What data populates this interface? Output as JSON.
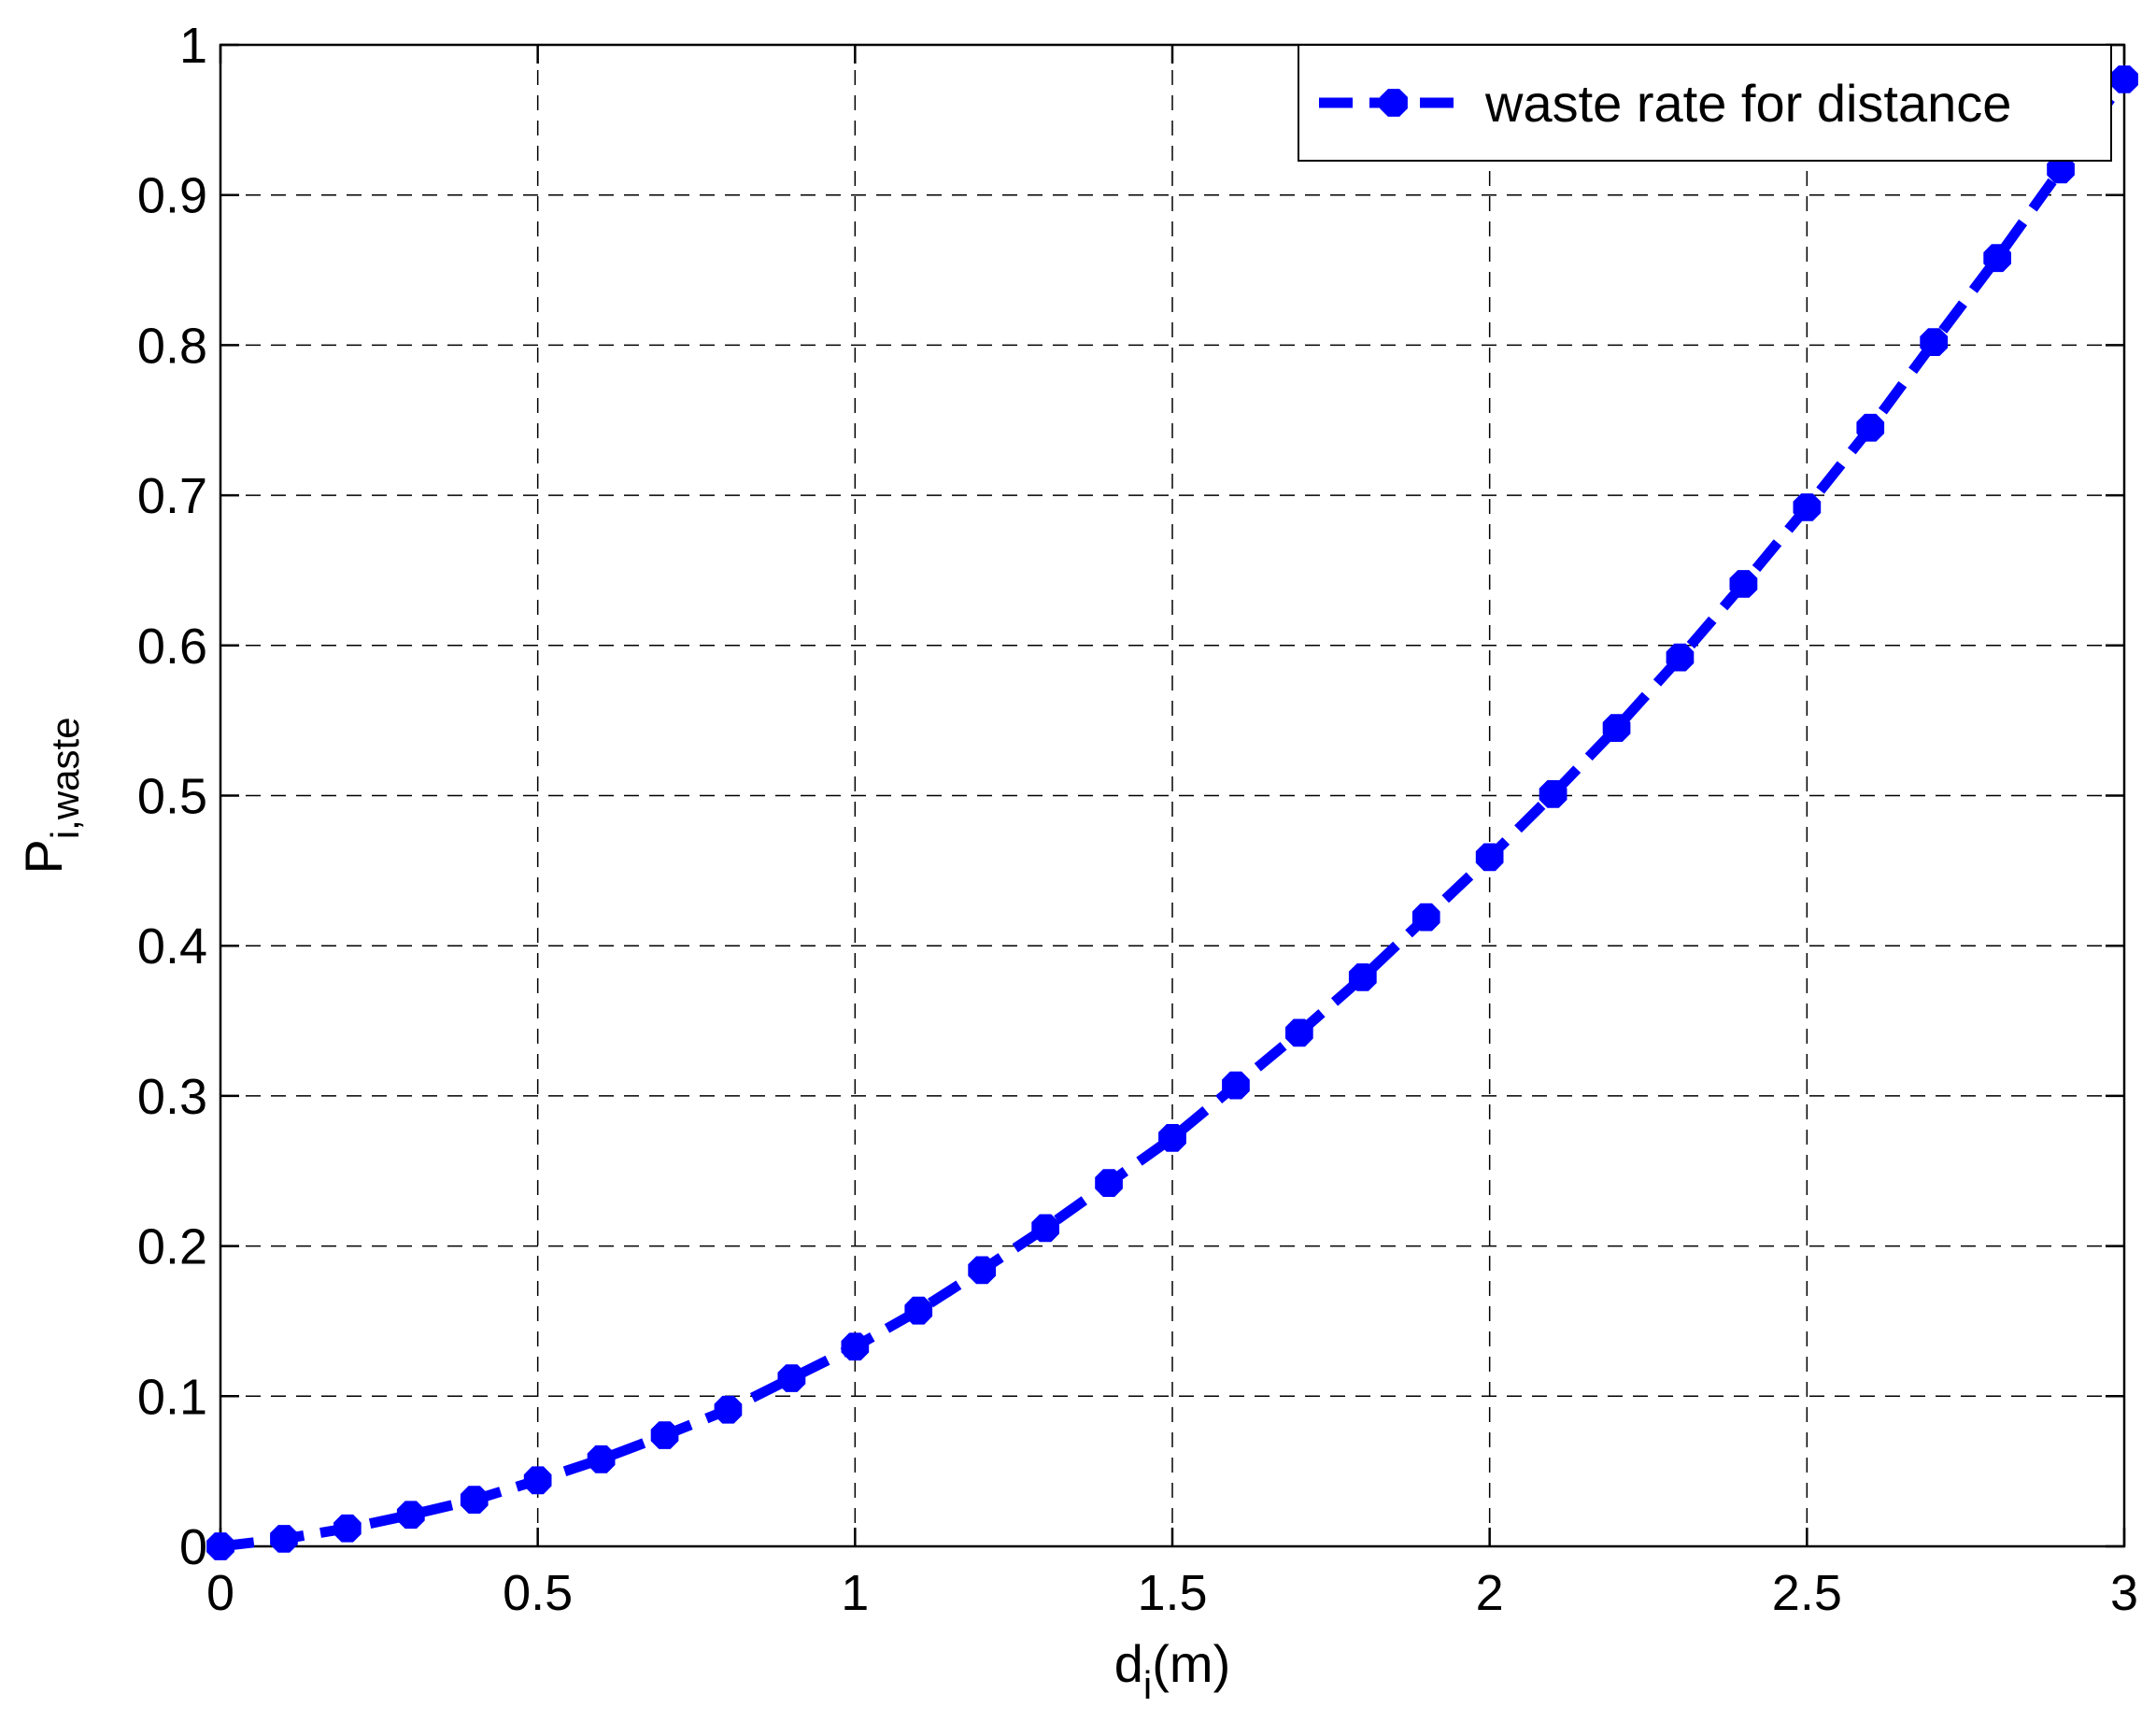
{
  "chart_data": {
    "type": "line",
    "xlabel": {
      "main": "d",
      "sub": "i",
      "suffix": "(m)"
    },
    "ylabel": {
      "main": "P",
      "sub": "i,waste"
    },
    "xlim": [
      0,
      3
    ],
    "ylim": [
      0,
      1
    ],
    "x_ticks": [
      "0",
      "0.5",
      "1",
      "1.5",
      "2",
      "2.5",
      "3"
    ],
    "y_ticks": [
      "0",
      "0.1",
      "0.2",
      "0.3",
      "0.4",
      "0.5",
      "0.6",
      "0.7",
      "0.8",
      "0.9",
      "1"
    ],
    "grid": true,
    "legend_position": "top-right",
    "series": [
      {
        "name": "waste rate for distance",
        "color": "#0000ff",
        "line_style": "dashed",
        "marker": "octagon",
        "x": [
          0,
          0.1,
          0.2,
          0.3,
          0.4,
          0.5,
          0.6,
          0.7,
          0.8,
          0.9,
          1.0,
          1.1,
          1.2,
          1.3,
          1.4,
          1.5,
          1.6,
          1.7,
          1.8,
          1.9,
          2.0,
          2.1,
          2.2,
          2.3,
          2.4,
          2.5,
          2.6,
          2.7,
          2.8,
          2.9,
          3.0
        ],
        "y": [
          0.0,
          0.005,
          0.012,
          0.021,
          0.031,
          0.044,
          0.058,
          0.074,
          0.091,
          0.112,
          0.133,
          0.157,
          0.184,
          0.212,
          0.242,
          0.272,
          0.307,
          0.342,
          0.379,
          0.419,
          0.459,
          0.501,
          0.545,
          0.592,
          0.641,
          0.692,
          0.745,
          0.802,
          0.858,
          0.917,
          0.977
        ]
      }
    ]
  }
}
